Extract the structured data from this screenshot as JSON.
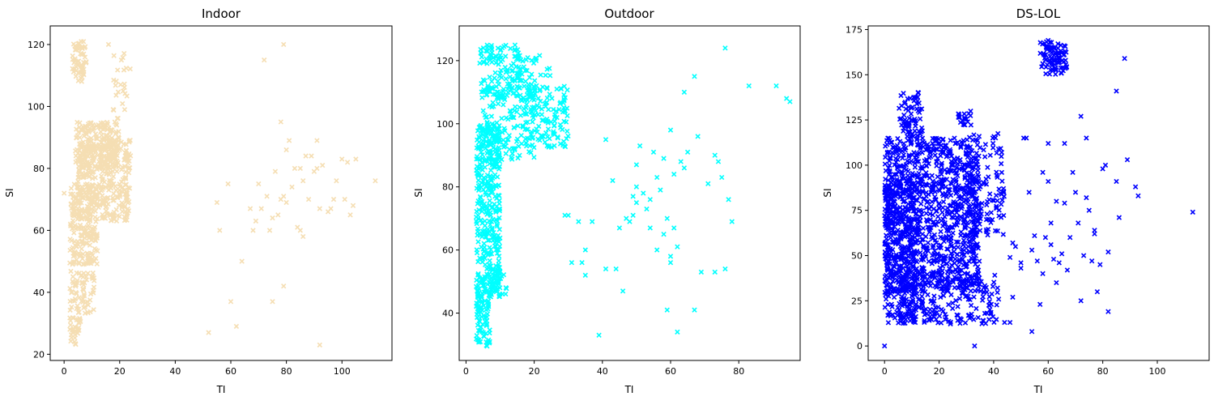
{
  "chart_data": [
    {
      "type": "scatter",
      "title": "Indoor",
      "xlabel": "TI",
      "ylabel": "SI",
      "xlim": [
        -5,
        118
      ],
      "ylim": [
        18,
        126
      ],
      "xticks": [
        0,
        20,
        40,
        60,
        80,
        100
      ],
      "yticks": [
        20,
        40,
        60,
        80,
        100,
        120
      ],
      "grid": false,
      "marker": "x",
      "color": "#f5deb3",
      "clusters": [
        {
          "x": [
            3,
            8
          ],
          "y": [
            108,
            121
          ],
          "n": 60
        },
        {
          "x": [
            17,
            24
          ],
          "y": [
            96,
            119
          ],
          "n": 25
        },
        {
          "x": [
            4,
            20
          ],
          "y": [
            80,
            95
          ],
          "n": 200
        },
        {
          "x": [
            5,
            24
          ],
          "y": [
            63,
            90
          ],
          "n": 340
        },
        {
          "x": [
            2,
            12
          ],
          "y": [
            49,
            75
          ],
          "n": 220
        },
        {
          "x": [
            2,
            11
          ],
          "y": [
            33,
            47
          ],
          "n": 70
        },
        {
          "x": [
            2,
            6
          ],
          "y": [
            23,
            33
          ],
          "n": 35
        }
      ],
      "points": [
        [
          0,
          72
        ],
        [
          16,
          120
        ],
        [
          72,
          115
        ],
        [
          79,
          120
        ],
        [
          55,
          69
        ],
        [
          56,
          60
        ],
        [
          59,
          75
        ],
        [
          60,
          37
        ],
        [
          62,
          29
        ],
        [
          64,
          50
        ],
        [
          67,
          67
        ],
        [
          68,
          60
        ],
        [
          69,
          63
        ],
        [
          70,
          75
        ],
        [
          71,
          67
        ],
        [
          73,
          71
        ],
        [
          74,
          60
        ],
        [
          75,
          37
        ],
        [
          75,
          64
        ],
        [
          76,
          79
        ],
        [
          77,
          65
        ],
        [
          78,
          70
        ],
        [
          78,
          95
        ],
        [
          79,
          42
        ],
        [
          79,
          71
        ],
        [
          80,
          86
        ],
        [
          80,
          69
        ],
        [
          81,
          89
        ],
        [
          82,
          74
        ],
        [
          83,
          80
        ],
        [
          84,
          61
        ],
        [
          85,
          60
        ],
        [
          85,
          80
        ],
        [
          86,
          58
        ],
        [
          86,
          76
        ],
        [
          87,
          84
        ],
        [
          88,
          70
        ],
        [
          89,
          84
        ],
        [
          90,
          79
        ],
        [
          91,
          80
        ],
        [
          91,
          89
        ],
        [
          92,
          67
        ],
        [
          93,
          81
        ],
        [
          95,
          66
        ],
        [
          96,
          67
        ],
        [
          97,
          70
        ],
        [
          98,
          76
        ],
        [
          100,
          83
        ],
        [
          101,
          70
        ],
        [
          102,
          82
        ],
        [
          103,
          65
        ],
        [
          104,
          68
        ],
        [
          105,
          83
        ],
        [
          112,
          76
        ],
        [
          52,
          27
        ],
        [
          92,
          23
        ]
      ]
    },
    {
      "type": "scatter",
      "title": "Outdoor",
      "xlabel": "TI",
      "ylabel": "SI",
      "xlim": [
        -2,
        98
      ],
      "ylim": [
        25,
        131
      ],
      "xticks": [
        0,
        20,
        40,
        60,
        80
      ],
      "yticks": [
        40,
        60,
        80,
        100,
        120
      ],
      "grid": false,
      "marker": "x",
      "color": "#00ffff",
      "clusters": [
        {
          "x": [
            3,
            7
          ],
          "y": [
            29,
            50
          ],
          "n": 90
        },
        {
          "x": [
            3,
            10
          ],
          "y": [
            45,
            100
          ],
          "n": 380
        },
        {
          "x": [
            7,
            12
          ],
          "y": [
            46,
            53
          ],
          "n": 25
        },
        {
          "x": [
            4,
            16
          ],
          "y": [
            108,
            125
          ],
          "n": 120
        },
        {
          "x": [
            14,
            25
          ],
          "y": [
            112,
            122
          ],
          "n": 40
        },
        {
          "x": [
            5,
            20
          ],
          "y": [
            88,
            112
          ],
          "n": 140
        },
        {
          "x": [
            17,
            30
          ],
          "y": [
            92,
            112
          ],
          "n": 130
        }
      ],
      "points": [
        [
          29,
          71
        ],
        [
          30,
          71
        ],
        [
          31,
          56
        ],
        [
          33,
          69
        ],
        [
          34,
          56
        ],
        [
          35,
          52
        ],
        [
          35,
          60
        ],
        [
          37,
          69
        ],
        [
          39,
          33
        ],
        [
          41,
          54
        ],
        [
          41,
          95
        ],
        [
          43,
          82
        ],
        [
          44,
          54
        ],
        [
          45,
          67
        ],
        [
          46,
          47
        ],
        [
          47,
          70
        ],
        [
          48,
          69
        ],
        [
          49,
          71
        ],
        [
          49,
          77
        ],
        [
          50,
          75
        ],
        [
          50,
          80
        ],
        [
          50,
          87
        ],
        [
          51,
          93
        ],
        [
          52,
          78
        ],
        [
          53,
          73
        ],
        [
          54,
          67
        ],
        [
          54,
          76
        ],
        [
          55,
          91
        ],
        [
          56,
          83
        ],
        [
          56,
          60
        ],
        [
          57,
          79
        ],
        [
          58,
          89
        ],
        [
          58,
          65
        ],
        [
          59,
          41
        ],
        [
          59,
          70
        ],
        [
          60,
          58
        ],
        [
          60,
          56
        ],
        [
          60,
          98
        ],
        [
          61,
          67
        ],
        [
          61,
          84
        ],
        [
          62,
          34
        ],
        [
          62,
          61
        ],
        [
          63,
          88
        ],
        [
          64,
          86
        ],
        [
          64,
          110
        ],
        [
          65,
          91
        ],
        [
          67,
          41
        ],
        [
          67,
          115
        ],
        [
          68,
          96
        ],
        [
          69,
          53
        ],
        [
          71,
          81
        ],
        [
          73,
          53
        ],
        [
          73,
          90
        ],
        [
          74,
          88
        ],
        [
          75,
          83
        ],
        [
          76,
          54
        ],
        [
          76,
          124
        ],
        [
          77,
          76
        ],
        [
          78,
          69
        ],
        [
          83,
          112
        ],
        [
          91,
          112
        ],
        [
          94,
          108
        ],
        [
          95,
          107
        ]
      ]
    },
    {
      "type": "scatter",
      "title": "DS-LOL",
      "xlabel": "TI",
      "ylabel": "SI",
      "xlim": [
        -6,
        119
      ],
      "ylim": [
        -8,
        177
      ],
      "xticks": [
        0,
        20,
        40,
        60,
        80,
        100
      ],
      "yticks": [
        0,
        25,
        50,
        75,
        100,
        125,
        150,
        175
      ],
      "grid": false,
      "marker": "x",
      "color": "#0000ff",
      "clusters": [
        {
          "x": [
            0,
            35
          ],
          "y": [
            30,
            115
          ],
          "n": 1100
        },
        {
          "x": [
            0,
            12
          ],
          "y": [
            12,
            90
          ],
          "n": 250
        },
        {
          "x": [
            5,
            42
          ],
          "y": [
            12,
            40
          ],
          "n": 200
        },
        {
          "x": [
            5,
            14
          ],
          "y": [
            115,
            141
          ],
          "n": 70
        },
        {
          "x": [
            27,
            32
          ],
          "y": [
            122,
            130
          ],
          "n": 20
        },
        {
          "x": [
            30,
            44
          ],
          "y": [
            60,
            118
          ],
          "n": 110
        },
        {
          "x": [
            57,
            67
          ],
          "y": [
            150,
            169
          ],
          "n": 90
        }
      ],
      "points": [
        [
          0,
          0
        ],
        [
          33,
          0
        ],
        [
          44,
          13
        ],
        [
          46,
          13
        ],
        [
          46,
          49
        ],
        [
          47,
          27
        ],
        [
          47,
          57
        ],
        [
          48,
          55
        ],
        [
          50,
          43
        ],
        [
          50,
          46
        ],
        [
          51,
          115
        ],
        [
          52,
          115
        ],
        [
          53,
          85
        ],
        [
          54,
          8
        ],
        [
          54,
          53
        ],
        [
          55,
          61
        ],
        [
          56,
          47
        ],
        [
          57,
          23
        ],
        [
          58,
          96
        ],
        [
          58,
          40
        ],
        [
          59,
          60
        ],
        [
          60,
          112
        ],
        [
          60,
          91
        ],
        [
          61,
          56
        ],
        [
          61,
          68
        ],
        [
          62,
          48
        ],
        [
          63,
          80
        ],
        [
          63,
          35
        ],
        [
          64,
          46
        ],
        [
          65,
          51
        ],
        [
          66,
          79
        ],
        [
          66,
          112
        ],
        [
          67,
          42
        ],
        [
          68,
          60
        ],
        [
          69,
          96
        ],
        [
          70,
          85
        ],
        [
          71,
          68
        ],
        [
          72,
          127
        ],
        [
          72,
          25
        ],
        [
          73,
          50
        ],
        [
          74,
          82
        ],
        [
          74,
          115
        ],
        [
          75,
          75
        ],
        [
          76,
          47
        ],
        [
          77,
          62
        ],
        [
          77,
          64
        ],
        [
          78,
          30
        ],
        [
          79,
          45
        ],
        [
          80,
          98
        ],
        [
          81,
          100
        ],
        [
          82,
          52
        ],
        [
          82,
          19
        ],
        [
          85,
          141
        ],
        [
          85,
          91
        ],
        [
          86,
          71
        ],
        [
          88,
          159
        ],
        [
          89,
          103
        ],
        [
          92,
          88
        ],
        [
          93,
          83
        ],
        [
          113,
          74
        ]
      ]
    }
  ]
}
